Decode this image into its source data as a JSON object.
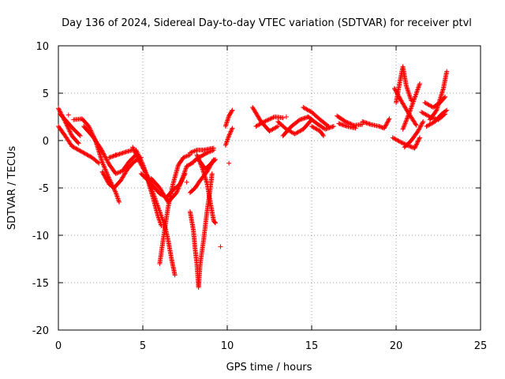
{
  "chart_data": {
    "type": "scatter",
    "title": "Day 136 of 2024, Sidereal Day-to-day VTEC variation (SDTVAR) for receiver ptvl",
    "xlabel": "GPS time / hours",
    "ylabel": "SDTVAR / TECUs",
    "xlim": [
      0,
      25
    ],
    "ylim": [
      -20,
      10
    ],
    "x_ticks": [
      0,
      5,
      10,
      15,
      20,
      25
    ],
    "y_ticks": [
      -20,
      -15,
      -10,
      -5,
      0,
      5,
      10
    ],
    "grid": true,
    "marker": "+",
    "color": "#ff0000",
    "tracks": [
      [
        [
          0.0,
          3.4
        ],
        [
          0.4,
          2.0
        ],
        [
          0.8,
          0.5
        ],
        [
          1.2,
          -0.3
        ]
      ],
      [
        [
          0.0,
          1.5
        ],
        [
          0.4,
          0.5
        ],
        [
          0.8,
          -0.6
        ],
        [
          1.4,
          -1.2
        ],
        [
          2.0,
          -1.8
        ],
        [
          2.4,
          -2.4
        ]
      ],
      [
        [
          0.1,
          2.8
        ],
        [
          0.5,
          2.0
        ],
        [
          0.9,
          1.2
        ],
        [
          1.3,
          0.5
        ]
      ],
      [
        [
          0.9,
          2.2
        ],
        [
          1.4,
          2.3
        ],
        [
          1.8,
          1.5
        ],
        [
          2.2,
          0.0
        ],
        [
          2.6,
          -2.3
        ],
        [
          3.0,
          -4.0
        ],
        [
          3.4,
          -5.5
        ],
        [
          3.6,
          -6.5
        ]
      ],
      [
        [
          1.5,
          1.5
        ],
        [
          2.0,
          0.5
        ],
        [
          2.5,
          -0.8
        ],
        [
          3.0,
          -2.5
        ],
        [
          3.4,
          -3.5
        ],
        [
          3.8,
          -3.2
        ],
        [
          4.2,
          -2.2
        ],
        [
          4.6,
          -1.5
        ]
      ],
      [
        [
          2.6,
          -3.3
        ],
        [
          3.0,
          -4.6
        ],
        [
          3.3,
          -5.0
        ],
        [
          3.7,
          -4.2
        ],
        [
          4.1,
          -3.0
        ],
        [
          4.5,
          -2.2
        ],
        [
          4.9,
          -1.8
        ]
      ],
      [
        [
          3.0,
          -1.8
        ],
        [
          3.5,
          -1.5
        ],
        [
          4.0,
          -1.2
        ],
        [
          4.4,
          -1.0
        ]
      ],
      [
        [
          4.4,
          -0.7
        ],
        [
          4.8,
          -2.2
        ],
        [
          5.2,
          -3.5
        ],
        [
          5.6,
          -4.8
        ],
        [
          6.0,
          -5.6
        ],
        [
          6.4,
          -6.0
        ],
        [
          6.8,
          -5.2
        ],
        [
          7.2,
          -4.6
        ],
        [
          7.5,
          -3.5
        ]
      ],
      [
        [
          4.6,
          -1.0
        ],
        [
          5.0,
          -2.5
        ],
        [
          5.4,
          -4.5
        ],
        [
          5.8,
          -6.5
        ],
        [
          6.1,
          -8.0
        ],
        [
          6.3,
          -9.0
        ],
        [
          6.5,
          -10.5
        ],
        [
          6.7,
          -12.5
        ],
        [
          6.9,
          -14.2
        ]
      ],
      [
        [
          4.9,
          -3.5
        ],
        [
          5.3,
          -4.2
        ],
        [
          5.6,
          -6.0
        ],
        [
          5.9,
          -8.0
        ],
        [
          6.1,
          -9.0
        ]
      ],
      [
        [
          5.5,
          -4.0
        ],
        [
          6.0,
          -5.0
        ],
        [
          6.5,
          -6.5
        ],
        [
          7.0,
          -5.5
        ],
        [
          7.3,
          -4.2
        ],
        [
          7.6,
          -2.7
        ],
        [
          8.0,
          -2.3
        ]
      ],
      [
        [
          6.0,
          -13.0
        ],
        [
          6.2,
          -10.5
        ],
        [
          6.5,
          -7.0
        ],
        [
          6.8,
          -4.5
        ],
        [
          7.1,
          -2.6
        ],
        [
          7.4,
          -1.8
        ],
        [
          7.8,
          -1.5
        ]
      ],
      [
        [
          7.8,
          -1.3
        ],
        [
          8.2,
          -1.0
        ],
        [
          8.6,
          -1.0
        ],
        [
          9.2,
          -0.8
        ]
      ],
      [
        [
          7.8,
          -7.5
        ],
        [
          8.0,
          -9.5
        ],
        [
          8.1,
          -11.5
        ],
        [
          8.2,
          -13.0
        ],
        [
          8.3,
          -15.5
        ],
        [
          8.4,
          -13.0
        ],
        [
          8.6,
          -10.5
        ],
        [
          8.8,
          -7.5
        ],
        [
          9.0,
          -5.0
        ],
        [
          9.1,
          -3.5
        ]
      ],
      [
        [
          8.0,
          -2.2
        ],
        [
          8.4,
          -1.7
        ],
        [
          8.8,
          -1.3
        ],
        [
          9.2,
          -1.0
        ]
      ],
      [
        [
          8.2,
          -1.5
        ],
        [
          8.5,
          -2.8
        ],
        [
          8.8,
          -4.5
        ],
        [
          9.0,
          -6.5
        ],
        [
          9.2,
          -8.5
        ],
        [
          9.3,
          -8.7
        ]
      ],
      [
        [
          8.3,
          -2.0
        ],
        [
          8.7,
          -3.0
        ],
        [
          9.0,
          -2.5
        ],
        [
          9.3,
          -2.0
        ]
      ],
      [
        [
          9.2,
          -2.0
        ],
        [
          8.8,
          -3.3
        ],
        [
          8.4,
          -4.2
        ],
        [
          8.1,
          -5.0
        ],
        [
          7.8,
          -5.5
        ]
      ],
      [
        [
          9.9,
          1.5
        ],
        [
          10.1,
          2.6
        ],
        [
          10.3,
          3.2
        ]
      ],
      [
        [
          9.9,
          -0.5
        ],
        [
          10.1,
          0.5
        ],
        [
          10.3,
          1.3
        ]
      ],
      [
        [
          11.5,
          3.5
        ],
        [
          12.0,
          2.0
        ],
        [
          12.5,
          1.0
        ],
        [
          13.0,
          1.5
        ]
      ],
      [
        [
          11.7,
          1.5
        ],
        [
          12.2,
          2.0
        ],
        [
          12.8,
          2.5
        ],
        [
          13.3,
          2.4
        ]
      ],
      [
        [
          13.0,
          2.0
        ],
        [
          13.5,
          1.2
        ],
        [
          14.0,
          0.7
        ],
        [
          14.5,
          1.2
        ],
        [
          15.0,
          2.2
        ]
      ],
      [
        [
          13.3,
          0.5
        ],
        [
          13.8,
          1.5
        ],
        [
          14.3,
          2.2
        ],
        [
          14.8,
          2.5
        ]
      ],
      [
        [
          14.5,
          3.5
        ],
        [
          15.0,
          3.0
        ],
        [
          15.5,
          2.2
        ],
        [
          16.0,
          1.5
        ]
      ],
      [
        [
          15.0,
          1.5
        ],
        [
          15.5,
          1.0
        ],
        [
          15.7,
          0.5
        ]
      ],
      [
        [
          14.8,
          2.5
        ],
        [
          15.3,
          1.8
        ],
        [
          15.8,
          1.2
        ],
        [
          16.3,
          1.5
        ]
      ],
      [
        [
          16.5,
          2.6
        ],
        [
          17.0,
          2.0
        ],
        [
          17.5,
          1.6
        ],
        [
          18.0,
          1.7
        ]
      ],
      [
        [
          16.6,
          1.8
        ],
        [
          17.1,
          1.5
        ],
        [
          17.6,
          1.3
        ]
      ],
      [
        [
          18.0,
          2.0
        ],
        [
          18.5,
          1.7
        ],
        [
          19.0,
          1.5
        ],
        [
          19.3,
          1.3
        ],
        [
          19.6,
          2.3
        ]
      ],
      [
        [
          19.8,
          0.3
        ],
        [
          20.3,
          -0.2
        ],
        [
          20.8,
          -0.6
        ],
        [
          21.1,
          -0.8
        ],
        [
          21.4,
          0.3
        ]
      ],
      [
        [
          20.0,
          4.0
        ],
        [
          20.2,
          6.0
        ],
        [
          20.4,
          7.8
        ],
        [
          20.6,
          5.8
        ],
        [
          20.9,
          4.2
        ]
      ],
      [
        [
          19.9,
          5.5
        ],
        [
          20.3,
          4.2
        ],
        [
          20.7,
          3.0
        ],
        [
          21.2,
          1.6
        ]
      ],
      [
        [
          20.4,
          1.2
        ],
        [
          20.8,
          3.0
        ],
        [
          21.2,
          5.0
        ],
        [
          21.4,
          6.0
        ]
      ],
      [
        [
          20.5,
          -0.7
        ],
        [
          20.9,
          0.0
        ],
        [
          21.3,
          1.0
        ],
        [
          21.6,
          2.0
        ]
      ],
      [
        [
          21.5,
          3.0
        ],
        [
          22.0,
          2.5
        ],
        [
          22.5,
          2.2
        ],
        [
          22.9,
          2.8
        ]
      ],
      [
        [
          21.7,
          4.0
        ],
        [
          22.2,
          3.5
        ],
        [
          22.6,
          4.0
        ],
        [
          22.9,
          4.6
        ]
      ],
      [
        [
          22.0,
          2.2
        ],
        [
          22.4,
          3.2
        ],
        [
          22.8,
          5.5
        ],
        [
          23.0,
          7.3
        ]
      ],
      [
        [
          21.8,
          1.5
        ],
        [
          22.3,
          2.0
        ],
        [
          22.7,
          2.8
        ],
        [
          23.0,
          3.2
        ]
      ]
    ],
    "isolated_points": [
      [
        0.6,
        2.7
      ],
      [
        2.5,
        -0.9
      ],
      [
        3.4,
        -1.5
      ],
      [
        6.1,
        -9.0
      ],
      [
        7.6,
        -4.4
      ],
      [
        9.6,
        -11.2
      ],
      [
        10.1,
        -2.4
      ],
      [
        13.5,
        2.5
      ]
    ]
  }
}
